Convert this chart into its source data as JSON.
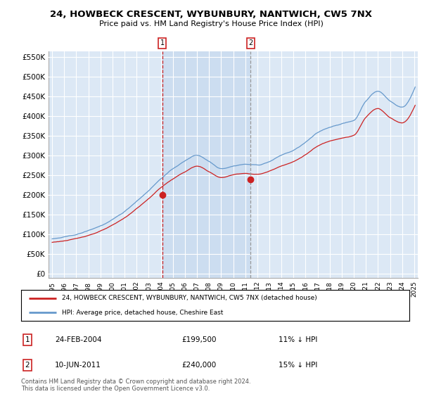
{
  "title": "24, HOWBECK CRESCENT, WYBUNBURY, NANTWICH, CW5 7NX",
  "subtitle": "Price paid vs. HM Land Registry's House Price Index (HPI)",
  "ylabel_ticks": [
    "£0",
    "£50K",
    "£100K",
    "£150K",
    "£200K",
    "£250K",
    "£300K",
    "£350K",
    "£400K",
    "£450K",
    "£500K",
    "£550K"
  ],
  "ytick_values": [
    0,
    50000,
    100000,
    150000,
    200000,
    250000,
    300000,
    350000,
    400000,
    450000,
    500000,
    550000
  ],
  "ylim": [
    -10000,
    565000
  ],
  "xlim_min": 1994.7,
  "xlim_max": 2025.3,
  "plot_bg_color": "#dce8f5",
  "shade_color": "#ccddf0",
  "grid_color": "#ffffff",
  "hpi_color": "#6699cc",
  "price_color": "#cc2222",
  "legend_label_price": "24, HOWBECK CRESCENT, WYBUNBURY, NANTWICH, CW5 7NX (detached house)",
  "legend_label_hpi": "HPI: Average price, detached house, Cheshire East",
  "transaction1_date": "24-FEB-2004",
  "transaction1_price": 199500,
  "transaction1_label": "11% ↓ HPI",
  "transaction1_x": 2004.13,
  "transaction2_date": "10-JUN-2011",
  "transaction2_price": 240000,
  "transaction2_label": "15% ↓ HPI",
  "transaction2_x": 2011.44,
  "footer": "Contains HM Land Registry data © Crown copyright and database right 2024.\nThis data is licensed under the Open Government Licence v3.0.",
  "hpi_seed": 42,
  "price_seed": 123
}
